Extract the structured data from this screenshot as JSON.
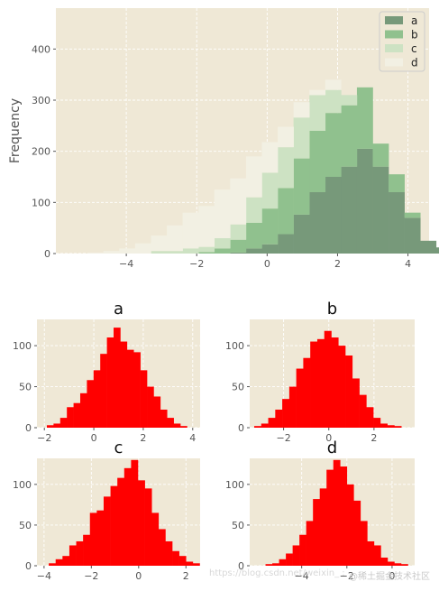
{
  "chart_data": [
    {
      "type": "bar",
      "subtype": "stacked-histogram",
      "title": "",
      "xlabel": "",
      "ylabel": "Frequency",
      "xlim": [
        -6,
        4.6
      ],
      "ylim": [
        0,
        480
      ],
      "xticks": [
        -4,
        -2,
        0,
        2,
        4
      ],
      "yticks": [
        0,
        100,
        200,
        300,
        400
      ],
      "grid": true,
      "legend_position": "top-right",
      "bin_width": 0.45,
      "bin_start": -5.1,
      "series": [
        {
          "name": "a",
          "color": "#77997a",
          "values": [
            0,
            0,
            0,
            0,
            0,
            0,
            0,
            0,
            0,
            2,
            10,
            18,
            38,
            76,
            120,
            150,
            170,
            205,
            170,
            120,
            70,
            25,
            12,
            3
          ]
        },
        {
          "name": "b",
          "color": "#90c18e",
          "values": [
            0,
            0,
            0,
            0,
            0,
            0,
            0,
            3,
            10,
            25,
            50,
            70,
            90,
            110,
            120,
            125,
            120,
            120,
            45,
            35,
            10,
            0,
            0,
            0
          ]
        },
        {
          "name": "c",
          "color": "#cde2c3",
          "values": [
            0,
            0,
            0,
            0,
            5,
            5,
            10,
            10,
            20,
            30,
            50,
            70,
            80,
            80,
            70,
            45,
            20,
            0,
            0,
            0,
            0,
            0,
            0,
            0
          ]
        },
        {
          "name": "d",
          "color": "#f2f0e3",
          "values": [
            2,
            5,
            10,
            20,
            30,
            50,
            70,
            80,
            95,
            90,
            80,
            60,
            40,
            30,
            10,
            20,
            0,
            0,
            0,
            0,
            0,
            0,
            0,
            0
          ]
        }
      ]
    },
    {
      "type": "bar",
      "subtype": "histogram",
      "title": "a",
      "color": "#ff0000",
      "xlim": [
        -2.3,
        4.3
      ],
      "ylim": [
        0,
        132
      ],
      "xticks": [
        -2,
        0,
        2,
        4
      ],
      "yticks": [
        0,
        50,
        100
      ],
      "bin_start": -1.9,
      "bin_width": 0.27,
      "values": [
        3,
        5,
        12,
        25,
        30,
        42,
        58,
        70,
        90,
        110,
        122,
        105,
        95,
        92,
        70,
        50,
        38,
        22,
        12,
        5,
        2
      ]
    },
    {
      "type": "bar",
      "subtype": "histogram",
      "title": "b",
      "color": "#ff0000",
      "xlim": [
        -3.5,
        3.8
      ],
      "ylim": [
        0,
        132
      ],
      "xticks": [
        -2,
        0,
        2
      ],
      "yticks": [
        0,
        50,
        100
      ],
      "bin_start": -3.3,
      "bin_width": 0.31,
      "values": [
        2,
        5,
        12,
        22,
        35,
        50,
        72,
        85,
        105,
        108,
        118,
        110,
        100,
        88,
        60,
        40,
        25,
        12,
        5,
        3,
        2
      ]
    },
    {
      "type": "bar",
      "subtype": "histogram",
      "title": "c",
      "color": "#ff0000",
      "xlim": [
        -4.3,
        2.6
      ],
      "ylim": [
        0,
        132
      ],
      "xticks": [
        -4,
        -2,
        0,
        2
      ],
      "yticks": [
        0,
        50,
        100
      ],
      "bin_start": -3.8,
      "bin_width": 0.29,
      "values": [
        3,
        8,
        12,
        25,
        30,
        38,
        65,
        68,
        85,
        98,
        108,
        120,
        130,
        105,
        95,
        65,
        45,
        30,
        18,
        12,
        5,
        3
      ]
    },
    {
      "type": "bar",
      "subtype": "histogram",
      "title": "d",
      "color": "#ff0000",
      "xlim": [
        -6.3,
        1.0
      ],
      "ylim": [
        0,
        132
      ],
      "xticks": [
        -4,
        -2,
        0
      ],
      "yticks": [
        0,
        50,
        100
      ],
      "bin_start": -5.6,
      "bin_width": 0.3,
      "values": [
        2,
        3,
        8,
        15,
        25,
        38,
        55,
        82,
        95,
        118,
        130,
        122,
        100,
        80,
        55,
        30,
        25,
        10,
        5,
        3,
        2
      ]
    }
  ],
  "watermark": {
    "url": "https://blog.csdn.net/weixin_ :",
    "label": "@稀土掘金技术社区"
  }
}
